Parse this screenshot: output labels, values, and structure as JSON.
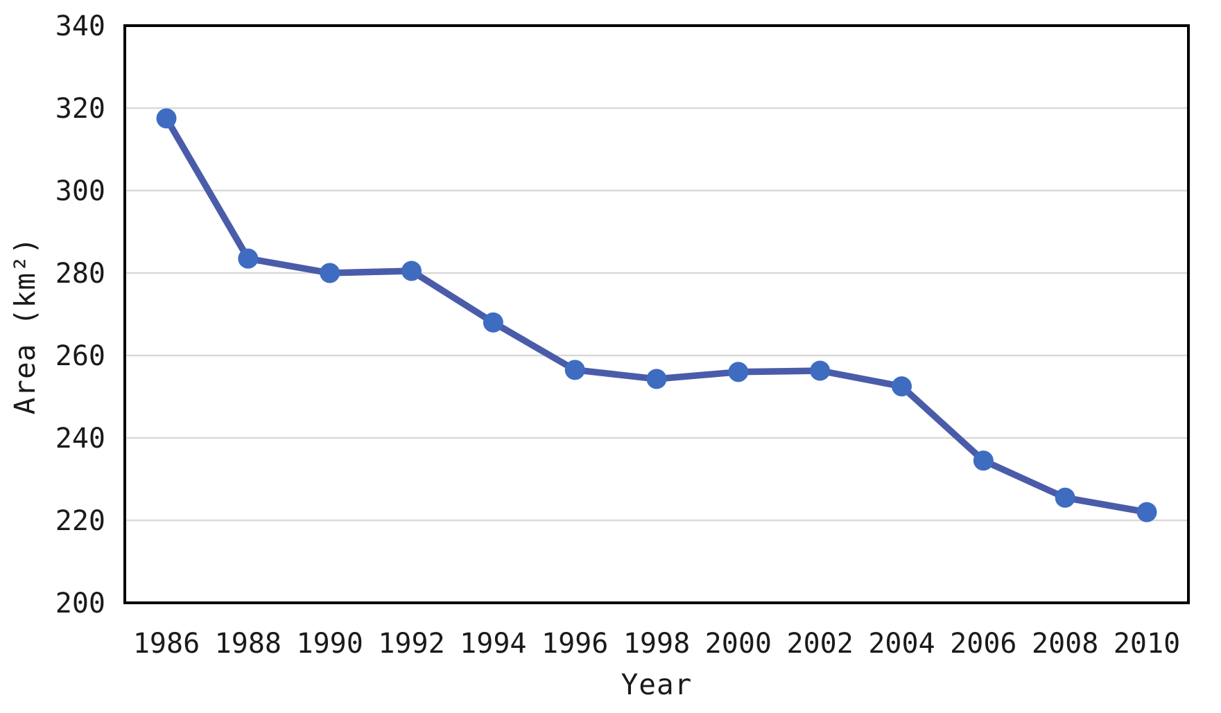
{
  "page": {
    "background_color": "#ffffff"
  },
  "chart_data": {
    "type": "line",
    "title": "",
    "xlabel": "Year",
    "ylabel": "Area (km²)",
    "x": [
      1986,
      1988,
      1990,
      1992,
      1994,
      1996,
      1998,
      2000,
      2002,
      2004,
      2006,
      2008,
      2010
    ],
    "series": [
      {
        "name": "Area",
        "values": [
          317.5,
          283.5,
          280.0,
          280.5,
          268.0,
          256.5,
          254.3,
          256.0,
          256.3,
          252.5,
          234.5,
          225.5,
          222.0
        ]
      }
    ],
    "ylim": [
      200,
      340
    ],
    "yticks": [
      200,
      220,
      240,
      260,
      280,
      300,
      320,
      340
    ],
    "xtick_labels": [
      "1986",
      "1988",
      "1990",
      "1992",
      "1994",
      "1996",
      "1998",
      "2000",
      "2002",
      "2004",
      "2006",
      "2008",
      "2010"
    ],
    "grid": "horizontal",
    "legend_position": "none",
    "marker_style": "circle",
    "colors": {
      "line": "#4A5CA9",
      "marker": "#3E6CC0",
      "gridline": "#D9D9D9",
      "axis_frame": "#000000",
      "text": "#1a1a1a"
    }
  }
}
